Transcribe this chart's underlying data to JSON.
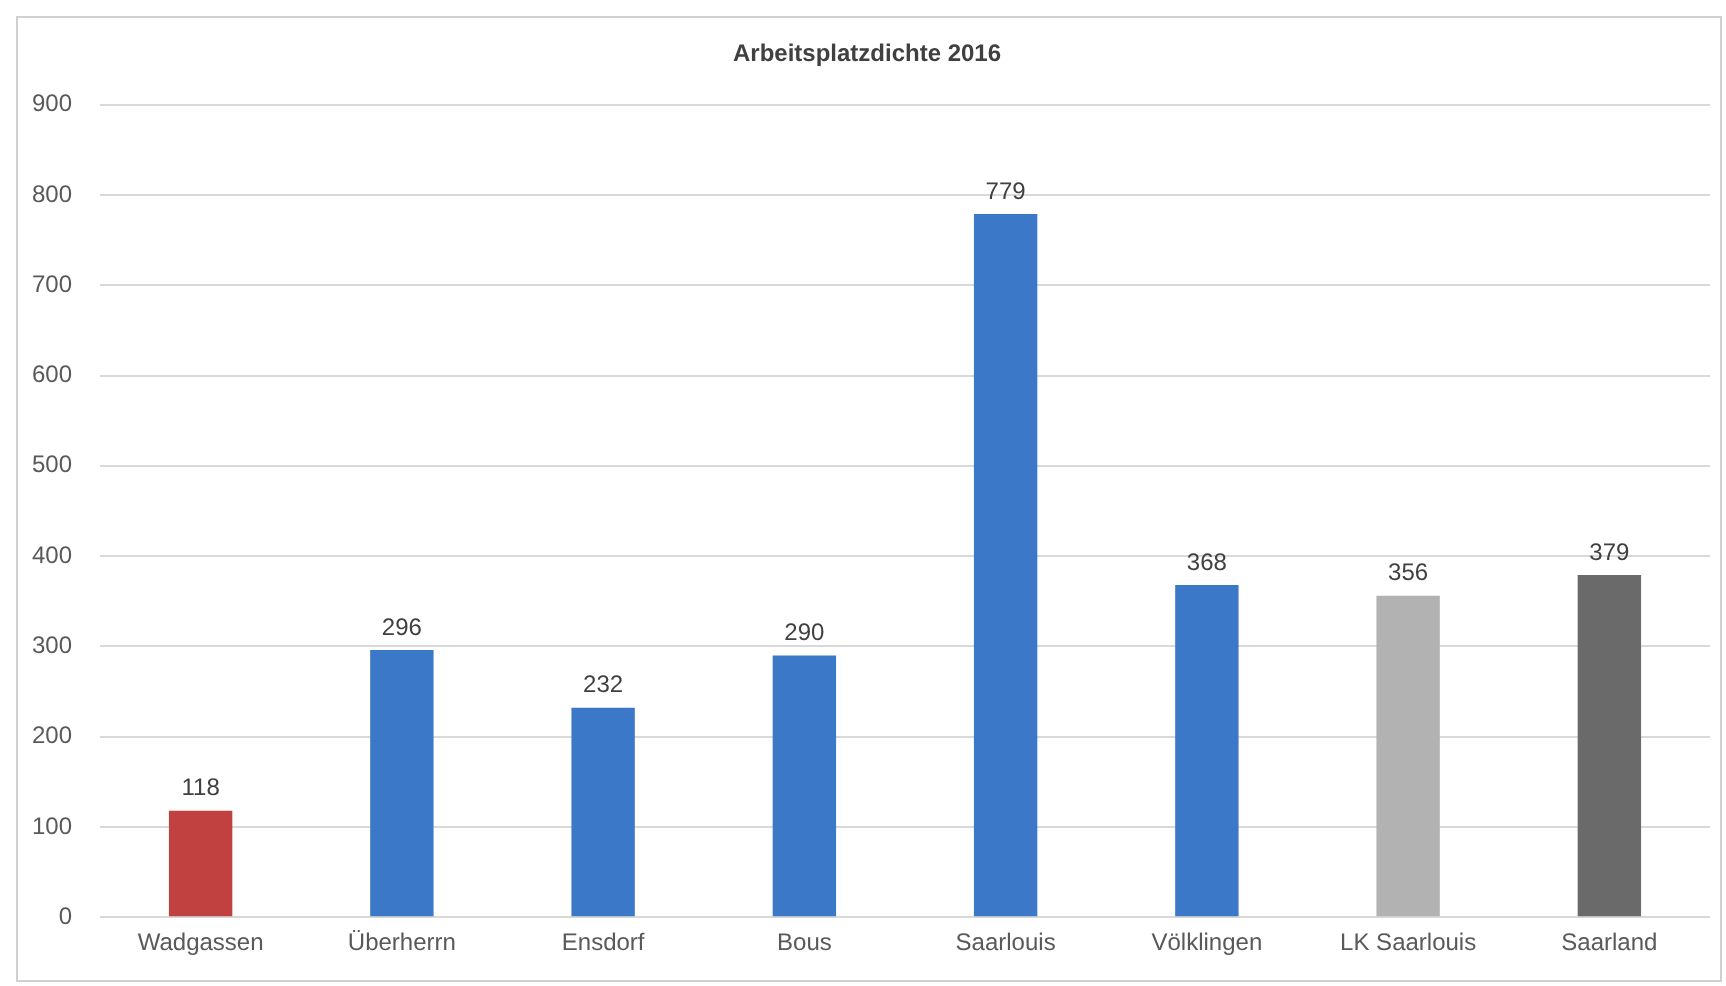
{
  "chart_data": {
    "type": "bar",
    "title": "Arbeitsplatzdichte 2016",
    "categories": [
      "Wadgassen",
      "Überherrn",
      "Ensdorf",
      "Bous",
      "Saarlouis",
      "Völklingen",
      "LK Saarlouis",
      "Saarland"
    ],
    "values": [
      118,
      296,
      232,
      290,
      779,
      368,
      356,
      379
    ],
    "colors": [
      "#c0413f",
      "#3c78c8",
      "#3c78c8",
      "#3c78c8",
      "#3c78c8",
      "#3c78c8",
      "#b2b2b2",
      "#6a6a6a"
    ],
    "ylim": [
      0,
      900
    ],
    "yticks": [
      0,
      100,
      200,
      300,
      400,
      500,
      600,
      700,
      800,
      900
    ],
    "grid": "y",
    "data_labels": true
  }
}
